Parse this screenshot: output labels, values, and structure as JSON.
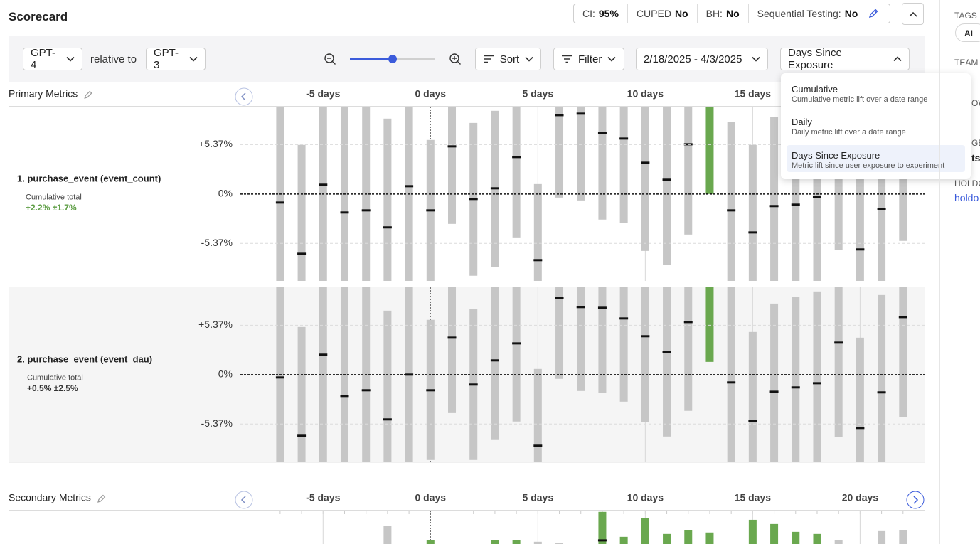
{
  "header": {
    "title": "Scorecard",
    "settings": [
      {
        "label": "CI:",
        "value": "95%"
      },
      {
        "label": "CUPED",
        "value": "No"
      },
      {
        "label": "BH:",
        "value": "No"
      },
      {
        "label": "Sequential Testing:",
        "value": "No"
      }
    ]
  },
  "toolbar": {
    "variant": "GPT-4",
    "relative_label": "relative to",
    "baseline": "GPT-3",
    "zoom": 0.5,
    "sort": "Sort",
    "filter": "Filter",
    "date_range": "2/18/2025 - 4/3/2025",
    "view": "Days Since Exposure"
  },
  "dropdown": {
    "selected": 2,
    "options": [
      {
        "title": "Cumulative",
        "description": "Cumulative metric lift over a date range"
      },
      {
        "title": "Daily",
        "description": "Daily metric lift over a date range"
      },
      {
        "title": "Days Since Exposure",
        "description": "Metric lift since user exposure to experiment"
      }
    ]
  },
  "sidebar": {
    "tags_label": "TAGS",
    "tag": "AI",
    "team_label": "TEAM",
    "fragment_1": "OW",
    "fragment_2": "GE",
    "fragment_3": "tsi",
    "holdout_label": "HOLDO",
    "holdout_link": "holdo"
  },
  "chart_data": [
    {
      "type": "range",
      "section": "Primary Metrics",
      "metric": "1. purchase_event (event_count)",
      "summary_label": "Cumulative total",
      "summary": "+2.2% ±1.7%",
      "summary_color": "#5e9e45",
      "x": [
        -7,
        -6,
        -5,
        -4,
        -3,
        -2,
        -1,
        0,
        1,
        2,
        3,
        4,
        5,
        6,
        7,
        8,
        9,
        10,
        11,
        12,
        13,
        14,
        15,
        16,
        17,
        18,
        19,
        20,
        21,
        22
      ],
      "xlim": [
        -8.85,
        23
      ],
      "xticks": [
        {
          "value": -5,
          "label": "-5 days"
        },
        {
          "value": 0,
          "label": "0 days"
        },
        {
          "value": 5,
          "label": "5 days"
        },
        {
          "value": 10,
          "label": "10 days"
        },
        {
          "value": 15,
          "label": "15 days"
        },
        {
          "value": 20,
          "label": "20 days"
        }
      ],
      "ylim": [
        -9.45,
        9.5
      ],
      "yticks": [
        {
          "value": 5.37,
          "label": "+5.37%"
        },
        {
          "value": 0,
          "label": "0%"
        },
        {
          "value": -5.37,
          "label": "-5.37%"
        }
      ],
      "low": [
        -9.45,
        -9.45,
        -9.45,
        -9.45,
        -9.45,
        -9.45,
        -9.45,
        -9.45,
        -3.25,
        -8.89,
        -7.97,
        -4.72,
        -9.45,
        -0.39,
        -0.7,
        -2.78,
        -3.17,
        -6.19,
        -7.73,
        -4.41,
        0,
        -9.45,
        -9.45,
        -9.45,
        -9.45,
        -9.45,
        -6.11,
        -9.45,
        -9.45,
        -5.1
      ],
      "high": [
        9.5,
        5.34,
        9.5,
        9.5,
        9.5,
        8.2,
        9.5,
        5.88,
        9.5,
        7.73,
        9.05,
        9.5,
        1.08,
        9.5,
        9.5,
        9.5,
        9.5,
        9.5,
        9.5,
        9.5,
        9.5,
        7.81,
        5.34,
        8.35,
        8.0,
        8.5,
        6.5,
        7.0,
        7.5,
        6.5
      ],
      "values": [
        -0.93,
        -6.5,
        1.01,
        -2.01,
        -1.78,
        -3.63,
        0.85,
        -1.78,
        5.18,
        -0.54,
        0.62,
        4.02,
        -7.19,
        8.58,
        8.74,
        6.65,
        6.03,
        3.4,
        1.55,
        5.41,
        null,
        -1.78,
        -4.18,
        -1.31,
        -1.16,
        -0.31,
        2.0,
        -6.03,
        -1.62,
        3.0
      ],
      "colors": [
        "#c6c6c6",
        "#c6c6c6",
        "#c6c6c6",
        "#c6c6c6",
        "#c6c6c6",
        "#c6c6c6",
        "#c6c6c6",
        "#c6c6c6",
        "#c6c6c6",
        "#c6c6c6",
        "#c6c6c6",
        "#c6c6c6",
        "#c6c6c6",
        "#c6c6c6",
        "#c6c6c6",
        "#c6c6c6",
        "#c6c6c6",
        "#c6c6c6",
        "#c6c6c6",
        "#c6c6c6",
        "#6aa84f",
        "#c6c6c6",
        "#c6c6c6",
        "#c6c6c6",
        "#c6c6c6",
        "#c6c6c6",
        "#c6c6c6",
        "#c6c6c6",
        "#c6c6c6",
        "#c6c6c6"
      ]
    },
    {
      "type": "range",
      "metric": "2. purchase_event (event_dau)",
      "summary_label": "Cumulative total",
      "summary": "+0.5% ±2.5%",
      "summary_color": "#333333",
      "x": [
        -7,
        -6,
        -5,
        -4,
        -3,
        -2,
        -1,
        0,
        1,
        2,
        3,
        4,
        5,
        6,
        7,
        8,
        9,
        10,
        11,
        12,
        13,
        14,
        15,
        16,
        17,
        18,
        19,
        20,
        21,
        22
      ],
      "ylim": [
        -9.45,
        9.5
      ],
      "yticks": [
        {
          "value": 5.37,
          "label": "+5.37%"
        },
        {
          "value": 0,
          "label": "0%"
        },
        {
          "value": -5.37,
          "label": "-5.37%"
        }
      ],
      "low": [
        -9.45,
        -9.45,
        -9.45,
        -9.45,
        -9.45,
        -9.45,
        -9.45,
        -9.28,
        -4.18,
        -9.28,
        -7.11,
        -5.1,
        -9.45,
        -0.46,
        -1.78,
        -2.01,
        -2.94,
        -5.18,
        -6.73,
        -3.94,
        1.39,
        -9.45,
        -9.45,
        -9.45,
        -9.45,
        -9.45,
        -6.81,
        -9.45,
        -9.45,
        -4.64
      ],
      "high": [
        9.5,
        5.18,
        9.5,
        9.5,
        9.5,
        6.96,
        9.5,
        5.96,
        9.5,
        7.11,
        9.5,
        9.5,
        0.62,
        9.5,
        9.5,
        9.5,
        9.5,
        9.5,
        9.5,
        9.5,
        9.5,
        9.5,
        4.64,
        7.73,
        8.43,
        9.05,
        9.5,
        4.02,
        8.66,
        9.5
      ],
      "values": [
        -0.31,
        -6.65,
        2.17,
        -2.32,
        -1.7,
        -4.87,
        0,
        -1.7,
        4.02,
        -1.08,
        1.55,
        3.4,
        -7.73,
        8.35,
        7.35,
        7.27,
        6.11,
        4.18,
        2.47,
        5.72,
        null,
        -0.85,
        -5.03,
        -1.86,
        -1.39,
        -0.93,
        3.48,
        -5.8,
        -1.93,
        6.26
      ],
      "colors": [
        "#c6c6c6",
        "#c6c6c6",
        "#c6c6c6",
        "#c6c6c6",
        "#c6c6c6",
        "#c6c6c6",
        "#c6c6c6",
        "#c6c6c6",
        "#c6c6c6",
        "#c6c6c6",
        "#c6c6c6",
        "#c6c6c6",
        "#c6c6c6",
        "#c6c6c6",
        "#c6c6c6",
        "#c6c6c6",
        "#c6c6c6",
        "#c6c6c6",
        "#c6c6c6",
        "#c6c6c6",
        "#6aa84f",
        "#c6c6c6",
        "#c6c6c6",
        "#c6c6c6",
        "#c6c6c6",
        "#c6c6c6",
        "#c6c6c6",
        "#c6c6c6",
        "#c6c6c6",
        "#c6c6c6"
      ]
    },
    {
      "type": "range",
      "section": "Secondary Metrics",
      "x": [
        -2,
        0,
        3,
        4,
        5,
        6,
        8,
        9,
        10,
        11,
        12,
        13,
        15,
        16,
        17,
        18,
        19,
        21,
        22
      ],
      "xlim": [
        -8.85,
        23
      ],
      "xticks": [
        {
          "value": -5,
          "label": "-5 days"
        },
        {
          "value": 0,
          "label": "0 days"
        },
        {
          "value": 5,
          "label": "5 days"
        },
        {
          "value": 10,
          "label": "10 days"
        },
        {
          "value": 15,
          "label": "15 days"
        },
        {
          "value": 20,
          "label": "20 days"
        }
      ],
      "ylim": [
        -9.45,
        9.5
      ],
      "high": [
        7.81,
        6.26,
        6.26,
        6.26,
        6.11,
        5.96,
        9.36,
        6.65,
        8.66,
        6.96,
        7.35,
        7.12,
        8.5,
        8.04,
        7.19,
        6.96,
        6.26,
        7.27,
        7.35
      ],
      "values": [
        null,
        null,
        null,
        null,
        null,
        null,
        6.26,
        null,
        null,
        null,
        null,
        null,
        null,
        null,
        null,
        null,
        null,
        null,
        null
      ],
      "colors": [
        "#c6c6c6",
        "#6aa84f",
        "#6aa84f",
        "#6aa84f",
        "#c6c6c6",
        "#c6c6c6",
        "#6aa84f",
        "#6aa84f",
        "#6aa84f",
        "#6aa84f",
        "#6aa84f",
        "#6aa84f",
        "#6aa84f",
        "#6aa84f",
        "#6aa84f",
        "#6aa84f",
        "#c6c6c6",
        "#c6c6c6",
        "#c6c6c6"
      ]
    }
  ]
}
